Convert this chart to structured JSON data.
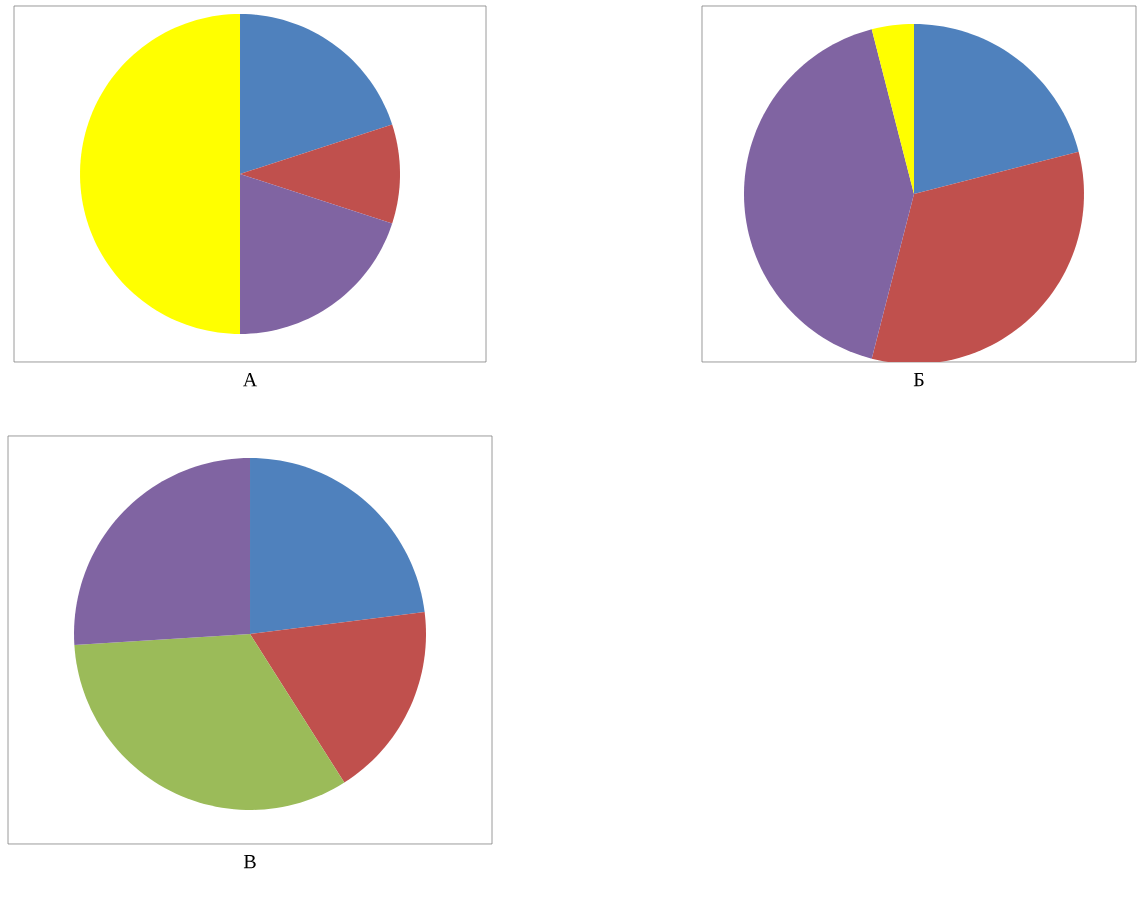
{
  "chart_data": [
    {
      "type": "pie",
      "title": "А",
      "categories": [
        null,
        null,
        null,
        null
      ],
      "values": [
        20,
        10,
        20,
        50
      ],
      "colors": [
        "#4f81bd",
        "#c0504d",
        "#8064a2",
        "#ffff00"
      ]
    },
    {
      "type": "pie",
      "title": "Б",
      "categories": [
        null,
        null,
        null,
        null
      ],
      "values": [
        21,
        33,
        42,
        4
      ],
      "colors": [
        "#4f81bd",
        "#c0504d",
        "#8064a2",
        "#ffff00"
      ]
    },
    {
      "type": "pie",
      "title": "В",
      "categories": [
        null,
        null,
        null,
        null
      ],
      "values": [
        23,
        18,
        33,
        26
      ],
      "colors": [
        "#4f81bd",
        "#c0504d",
        "#9bbb59",
        "#8064a2"
      ]
    }
  ]
}
